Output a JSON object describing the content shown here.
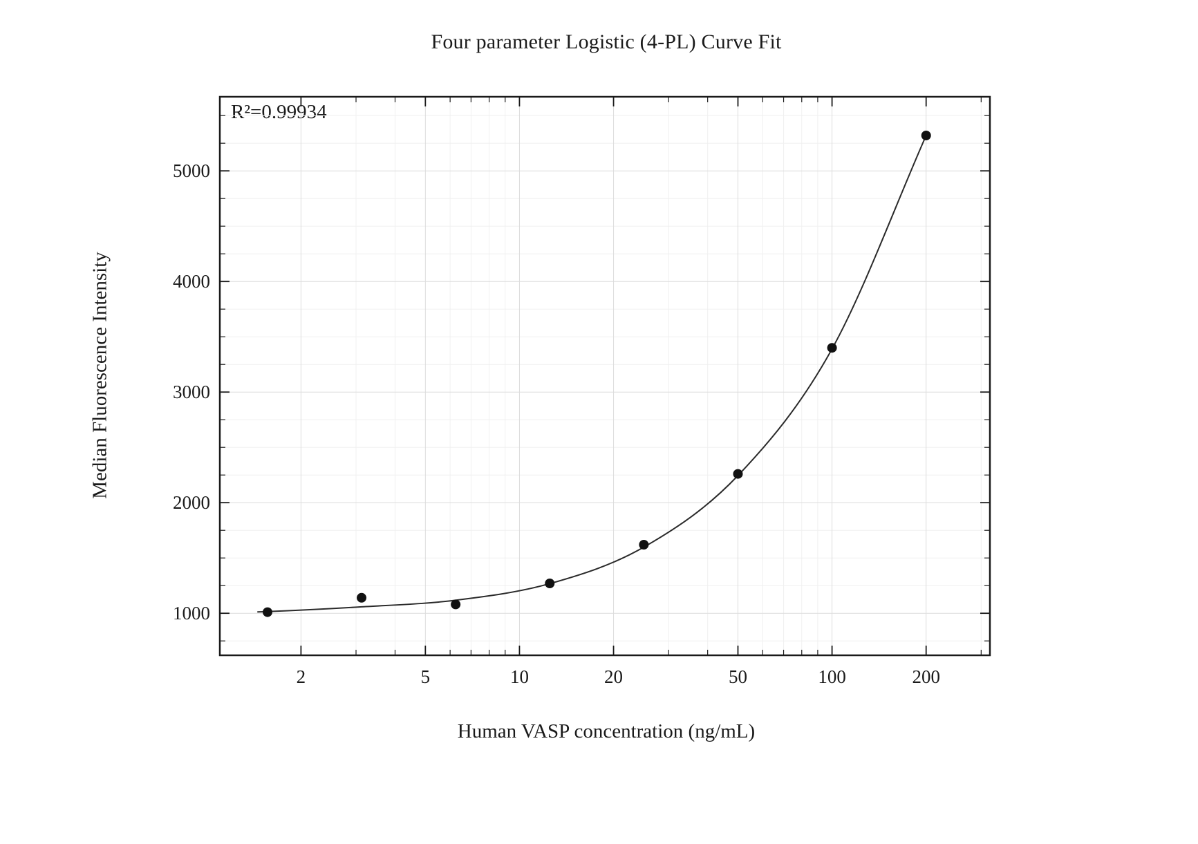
{
  "page": {
    "background": "#ffffff"
  },
  "chart_data": {
    "type": "scatter",
    "title": "Four parameter Logistic (4-PL) Curve Fit",
    "xlabel": "Human VASP concentration (ng/mL)",
    "ylabel": "Median Fluorescence Intensity",
    "r2_label": "R²=0.99934",
    "x_scale": "log",
    "x_range": [
      1.1,
      320
    ],
    "y_range": [
      620,
      5670
    ],
    "x_ticks": [
      2,
      5,
      10,
      20,
      50,
      100,
      200
    ],
    "x_minor_ticks": [
      3,
      4,
      6,
      7,
      8,
      9,
      30,
      40,
      60,
      70,
      80,
      90,
      300
    ],
    "y_ticks": [
      1000,
      2000,
      3000,
      4000,
      5000
    ],
    "y_minor_step": 250,
    "grid": true,
    "legend": "none",
    "points": [
      {
        "x": 1.563,
        "y": 1010
      },
      {
        "x": 3.125,
        "y": 1140
      },
      {
        "x": 6.25,
        "y": 1080
      },
      {
        "x": 12.5,
        "y": 1270
      },
      {
        "x": 25,
        "y": 1620
      },
      {
        "x": 50,
        "y": 2260
      },
      {
        "x": 100,
        "y": 3400
      },
      {
        "x": 200,
        "y": 5320
      }
    ],
    "curve_points": [
      [
        1.45,
        1012
      ],
      [
        1.563,
        1015
      ],
      [
        3.125,
        1058
      ],
      [
        6.25,
        1118
      ],
      [
        12.5,
        1268
      ],
      [
        25,
        1598
      ],
      [
        50,
        2245
      ],
      [
        100,
        3390
      ],
      [
        200,
        5320
      ]
    ],
    "colors": {
      "points": "#111111",
      "curve": "#2a2a2a",
      "axis": "#1a1a1a",
      "grid_major": "#dcdcdc",
      "grid_minor": "#f0f0f0",
      "text": "#1a1a1a"
    }
  }
}
